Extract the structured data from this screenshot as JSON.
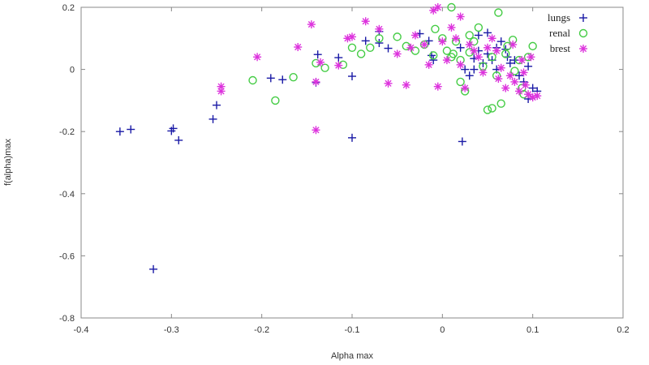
{
  "chart_data": {
    "type": "scatter",
    "title": "",
    "xlabel": "Alpha max",
    "ylabel": "f(alpha)max",
    "xlim": [
      -0.4,
      0.2
    ],
    "ylim": [
      -0.8,
      0.2
    ],
    "xticks": [
      -0.4,
      -0.3,
      -0.2,
      -0.1,
      0,
      0.1,
      0.2
    ],
    "yticks": [
      -0.8,
      -0.6,
      -0.4,
      -0.2,
      0,
      0.2
    ],
    "xtick_labels": [
      "-0.4",
      "-0.3",
      "-0.2",
      "-0.1",
      "0",
      "0.1",
      "0.2"
    ],
    "ytick_labels": [
      "-0.8",
      "-0.6",
      "-0.4",
      "-0.2",
      "0",
      "0.2"
    ],
    "grid": false,
    "legend_position": "top-right",
    "series": [
      {
        "name": "lungs",
        "marker": "plus",
        "color": "#1a1aa6",
        "points": [
          [
            -0.357,
            -0.2
          ],
          [
            -0.345,
            -0.193
          ],
          [
            -0.3,
            -0.198
          ],
          [
            -0.298,
            -0.19
          ],
          [
            -0.292,
            -0.228
          ],
          [
            -0.32,
            -0.643
          ],
          [
            -0.254,
            -0.16
          ],
          [
            -0.25,
            -0.115
          ],
          [
            -0.19,
            -0.028
          ],
          [
            -0.177,
            -0.033
          ],
          [
            -0.14,
            -0.042
          ],
          [
            -0.138,
            0.048
          ],
          [
            -0.115,
            0.038
          ],
          [
            -0.1,
            -0.022
          ],
          [
            -0.1,
            -0.22
          ],
          [
            -0.085,
            0.092
          ],
          [
            -0.07,
            0.122
          ],
          [
            -0.07,
            0.085
          ],
          [
            -0.06,
            0.068
          ],
          [
            -0.025,
            0.115
          ],
          [
            -0.015,
            0.092
          ],
          [
            -0.012,
            0.045
          ],
          [
            -0.01,
            0.03
          ],
          [
            0.02,
            0.07
          ],
          [
            0.022,
            -0.232
          ],
          [
            0.025,
            0.0
          ],
          [
            0.03,
            -0.02
          ],
          [
            0.035,
            0.035
          ],
          [
            0.04,
            0.11
          ],
          [
            0.045,
            0.02
          ],
          [
            0.05,
            0.05
          ],
          [
            0.05,
            0.118
          ],
          [
            0.055,
            0.03
          ],
          [
            0.06,
            0.07
          ],
          [
            0.065,
            0.09
          ],
          [
            0.07,
            0.065
          ],
          [
            0.072,
            0.04
          ],
          [
            0.075,
            0.02
          ],
          [
            0.085,
            -0.02
          ],
          [
            0.09,
            -0.04
          ],
          [
            0.095,
            0.01
          ],
          [
            0.095,
            -0.095
          ],
          [
            0.1,
            -0.06
          ],
          [
            0.105,
            -0.07
          ],
          [
            0.06,
            0.0
          ],
          [
            0.035,
            0.0
          ],
          [
            0.04,
            0.06
          ],
          [
            0.08,
            0.03
          ]
        ]
      },
      {
        "name": "renal",
        "marker": "circle",
        "color": "#44cc44",
        "points": [
          [
            -0.21,
            -0.035
          ],
          [
            -0.185,
            -0.1
          ],
          [
            -0.165,
            -0.025
          ],
          [
            -0.14,
            0.02
          ],
          [
            -0.13,
            0.005
          ],
          [
            -0.11,
            0.015
          ],
          [
            -0.1,
            0.07
          ],
          [
            -0.09,
            0.05
          ],
          [
            -0.08,
            0.07
          ],
          [
            -0.07,
            0.1
          ],
          [
            -0.05,
            0.105
          ],
          [
            -0.04,
            0.075
          ],
          [
            -0.03,
            0.06
          ],
          [
            -0.02,
            0.08
          ],
          [
            -0.01,
            0.045
          ],
          [
            -0.008,
            0.13
          ],
          [
            0.0,
            0.1
          ],
          [
            0.005,
            0.06
          ],
          [
            0.01,
            0.04
          ],
          [
            0.01,
            0.2
          ],
          [
            0.015,
            0.09
          ],
          [
            0.02,
            0.03
          ],
          [
            0.02,
            -0.04
          ],
          [
            0.025,
            -0.07
          ],
          [
            0.03,
            0.055
          ],
          [
            0.035,
            0.09
          ],
          [
            0.04,
            0.135
          ],
          [
            0.045,
            0.01
          ],
          [
            0.05,
            -0.13
          ],
          [
            0.055,
            -0.125
          ],
          [
            0.055,
            0.04
          ],
          [
            0.06,
            -0.02
          ],
          [
            0.062,
            0.183
          ],
          [
            0.065,
            -0.11
          ],
          [
            0.07,
            0.05
          ],
          [
            0.072,
            0.075
          ],
          [
            0.078,
            0.095
          ],
          [
            0.08,
            -0.005
          ],
          [
            0.085,
            0.03
          ],
          [
            0.088,
            -0.06
          ],
          [
            0.09,
            -0.08
          ],
          [
            0.095,
            0.04
          ],
          [
            0.1,
            0.075
          ],
          [
            0.03,
            0.11
          ],
          [
            0.012,
            0.05
          ]
        ]
      },
      {
        "name": "brest",
        "marker": "star",
        "color": "#dd33dd",
        "points": [
          [
            -0.245,
            -0.055
          ],
          [
            -0.245,
            -0.07
          ],
          [
            -0.205,
            0.04
          ],
          [
            -0.16,
            0.072
          ],
          [
            -0.145,
            0.145
          ],
          [
            -0.14,
            -0.04
          ],
          [
            -0.14,
            -0.195
          ],
          [
            -0.135,
            0.023
          ],
          [
            -0.115,
            0.013
          ],
          [
            -0.105,
            0.1
          ],
          [
            -0.1,
            0.105
          ],
          [
            -0.085,
            0.155
          ],
          [
            -0.07,
            0.13
          ],
          [
            -0.06,
            -0.045
          ],
          [
            -0.05,
            0.05
          ],
          [
            -0.04,
            -0.05
          ],
          [
            -0.035,
            0.07
          ],
          [
            -0.03,
            0.11
          ],
          [
            -0.02,
            0.08
          ],
          [
            -0.015,
            0.015
          ],
          [
            -0.01,
            0.19
          ],
          [
            -0.005,
            0.2
          ],
          [
            -0.005,
            -0.055
          ],
          [
            0.0,
            0.09
          ],
          [
            0.005,
            0.03
          ],
          [
            0.01,
            0.135
          ],
          [
            0.015,
            0.1
          ],
          [
            0.02,
            0.015
          ],
          [
            0.025,
            -0.06
          ],
          [
            0.03,
            0.08
          ],
          [
            0.035,
            0.06
          ],
          [
            0.04,
            0.04
          ],
          [
            0.045,
            -0.01
          ],
          [
            0.05,
            0.07
          ],
          [
            0.055,
            0.1
          ],
          [
            0.06,
            0.06
          ],
          [
            0.062,
            -0.03
          ],
          [
            0.065,
            0.005
          ],
          [
            0.07,
            -0.06
          ],
          [
            0.075,
            -0.02
          ],
          [
            0.078,
            0.08
          ],
          [
            0.08,
            -0.04
          ],
          [
            0.085,
            -0.07
          ],
          [
            0.088,
            0.03
          ],
          [
            0.09,
            -0.01
          ],
          [
            0.092,
            -0.05
          ],
          [
            0.095,
            -0.08
          ],
          [
            0.1,
            -0.09
          ],
          [
            0.105,
            -0.085
          ],
          [
            0.098,
            0.04
          ],
          [
            0.02,
            0.17
          ]
        ]
      }
    ]
  }
}
